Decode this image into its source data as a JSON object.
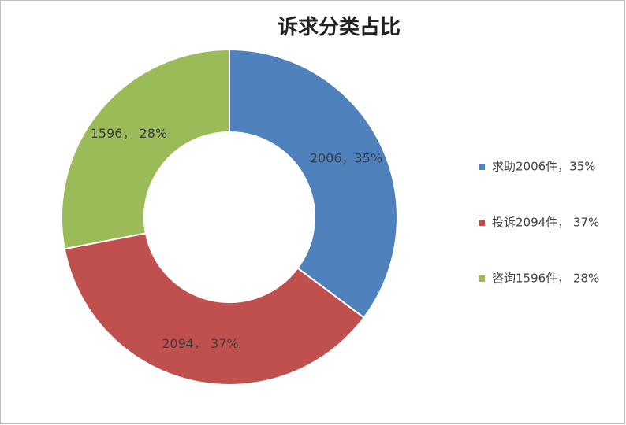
{
  "chart_data": {
    "type": "donut",
    "title": "诉求分类占比",
    "categories": [
      "求助2006件，35%",
      "投诉2094件， 37%",
      "咨询1596件， 28%"
    ],
    "values": [
      2006,
      2094,
      1596
    ],
    "value_labels": [
      "2006，35%",
      "2094， 37%",
      "1596， 28%"
    ],
    "colors": [
      "#4f81bd",
      "#c0504d",
      "#9bbb59"
    ],
    "legend": "right"
  }
}
